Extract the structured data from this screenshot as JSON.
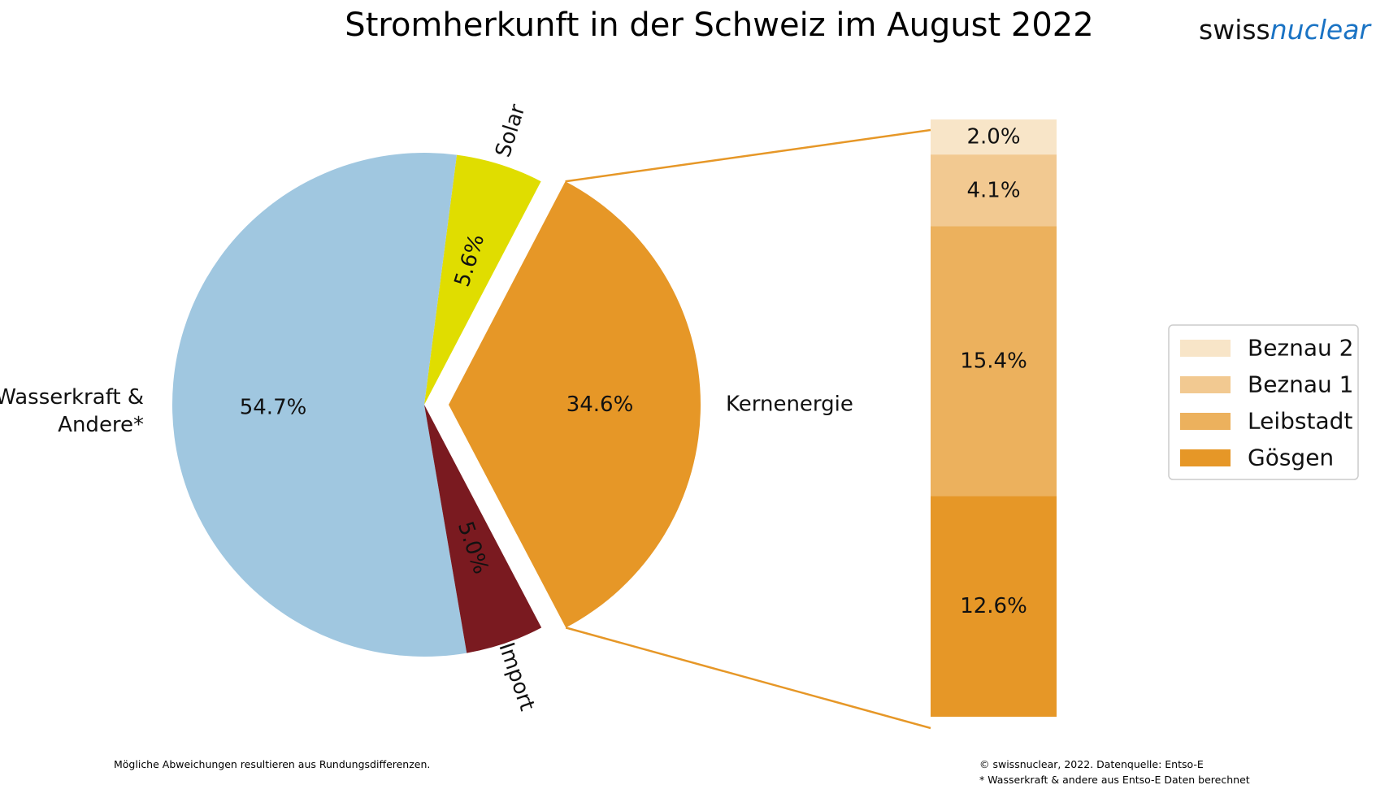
{
  "brand": {
    "part1": "swiss",
    "part2": "nuclear",
    "color1": "#111111",
    "color2": "#1a73c4"
  },
  "footnotes": {
    "left": "Mögliche Abweichungen resultieren aus Rundungsdifferenzen.",
    "right_1": "© swissnuclear, 2022. Datenquelle: Entso-E",
    "right_2": "* Wasserkraft & andere aus Entso-E Daten berechnet"
  },
  "chart_data": [
    {
      "type": "pie",
      "title": "Stromherkunft in der Schweiz im August 2022",
      "slices": [
        {
          "label": "Kernenergie",
          "value": 34.6,
          "value_label": "34.6%",
          "color": "#e69727",
          "exploded": true
        },
        {
          "label": "Solar",
          "value": 5.6,
          "value_label": "5.6%",
          "color": "#e0dd00",
          "exploded": false
        },
        {
          "label": "Wasserkraft & Andere*",
          "label_lines": [
            "Wasserkraft &",
            "Andere*"
          ],
          "value": 54.7,
          "value_label": "54.7%",
          "color": "#a0c7e0",
          "exploded": false
        },
        {
          "label": "Import",
          "value": 5.0,
          "value_label": "5.0%",
          "color": "#7a1a20",
          "exploded": false
        }
      ]
    },
    {
      "type": "bar",
      "stacked": true,
      "breakdown_of": "Kernenergie",
      "segments": [
        {
          "name": "Gösgen",
          "value": 12.6,
          "value_label": "12.6%",
          "color": "#e69727"
        },
        {
          "name": "Leibstadt",
          "value": 15.4,
          "value_label": "15.4%",
          "color": "#ecb15d"
        },
        {
          "name": "Beznau 1",
          "value": 4.1,
          "value_label": "4.1%",
          "color": "#f2c991"
        },
        {
          "name": "Beznau 2",
          "value": 2.0,
          "value_label": "2.0%",
          "color": "#f8e5c8"
        }
      ],
      "legend": {
        "position": "right",
        "order": [
          "Beznau 2",
          "Beznau 1",
          "Leibstadt",
          "Gösgen"
        ]
      }
    }
  ]
}
